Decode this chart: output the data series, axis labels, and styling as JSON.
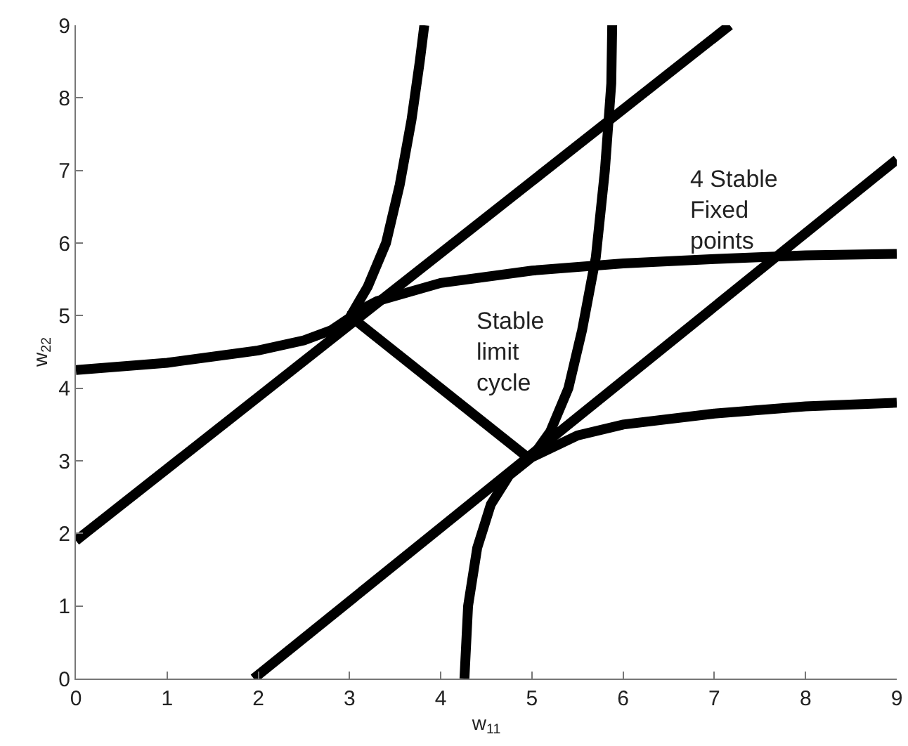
{
  "chart_data": {
    "type": "line",
    "xlabel": "w$_{11}$",
    "ylabel": "w$_{22}$",
    "xlim": [
      0,
      9
    ],
    "ylim": [
      0,
      9
    ],
    "xticks": [
      0,
      1,
      2,
      3,
      4,
      5,
      6,
      7,
      8,
      9
    ],
    "yticks": [
      0,
      1,
      2,
      3,
      4,
      5,
      6,
      7,
      8,
      9
    ],
    "grid": false,
    "marker": "none",
    "line_style": "solid",
    "series": [
      {
        "color": "#000000",
        "x": [
          0,
          7.17
        ],
        "values": [
          1.9,
          9
        ]
      },
      {
        "color": "#000000",
        "x": [
          1.95,
          9
        ],
        "values": [
          0,
          7.15
        ]
      },
      {
        "color": "#000000",
        "x": [
          3,
          5
        ],
        "values": [
          5,
          3
        ]
      },
      {
        "color": "#000000",
        "x": [
          0,
          1,
          2,
          2.5,
          2.8,
          3,
          3.2,
          3.4,
          3.55,
          3.68,
          3.77,
          3.82
        ],
        "values": [
          4.25,
          4.35,
          4.52,
          4.66,
          4.8,
          4.97,
          5.4,
          6,
          6.8,
          7.7,
          8.5,
          9
        ]
      },
      {
        "color": "#000000",
        "x": [
          3,
          3.3,
          4,
          5,
          6,
          7,
          8,
          9
        ],
        "values": [
          5,
          5.2,
          5.45,
          5.62,
          5.72,
          5.78,
          5.83,
          5.85
        ]
      },
      {
        "color": "#000000",
        "x": [
          4.26,
          4.3,
          4.4,
          4.55,
          4.75,
          5,
          5.5,
          6,
          7,
          8,
          9
        ],
        "values": [
          0,
          1,
          1.8,
          2.4,
          2.8,
          3.05,
          3.35,
          3.5,
          3.65,
          3.75,
          3.8
        ]
      },
      {
        "color": "#000000",
        "x": [
          5,
          5.2,
          5.4,
          5.55,
          5.7,
          5.8,
          5.87,
          5.88
        ],
        "values": [
          3.05,
          3.4,
          4,
          4.8,
          5.8,
          7,
          8.2,
          9
        ]
      }
    ],
    "annotations": [
      "4 Stable\nFixed\npoints",
      "Stable\nlimit\ncycle"
    ]
  }
}
